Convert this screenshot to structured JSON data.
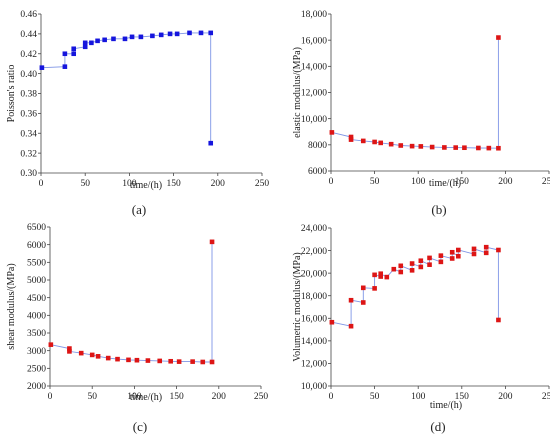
{
  "chart_data": [
    {
      "type": "scatter",
      "panel_label": "(a)",
      "xlabel": "time/(h)",
      "ylabel": "Poisson's ratio",
      "xlim": [
        0,
        250
      ],
      "ylim": [
        0.3,
        0.46
      ],
      "xticks": [
        "0",
        "50",
        "100",
        "150",
        "200",
        "250"
      ],
      "yticks": [
        "0.30",
        "0.32",
        "0.34",
        "0.36",
        "0.38",
        "0.40",
        "0.42",
        "0.44",
        "0.46"
      ],
      "marker_color": "#1515dd",
      "line_color": "#7f95e6",
      "connected": true,
      "points": [
        [
          1,
          0.406
        ],
        [
          27,
          0.407
        ],
        [
          27,
          0.42
        ],
        [
          37,
          0.42
        ],
        [
          37,
          0.425
        ],
        [
          50,
          0.427
        ],
        [
          50,
          0.431
        ],
        [
          57,
          0.431
        ],
        [
          64,
          0.433
        ],
        [
          72,
          0.434
        ],
        [
          82,
          0.435
        ],
        [
          95,
          0.435
        ],
        [
          103,
          0.437
        ],
        [
          113,
          0.437
        ],
        [
          126,
          0.438
        ],
        [
          136,
          0.439
        ],
        [
          146,
          0.44
        ],
        [
          154,
          0.44
        ],
        [
          168,
          0.441
        ],
        [
          181,
          0.441
        ],
        [
          192,
          0.441
        ],
        [
          192,
          0.33
        ]
      ]
    },
    {
      "type": "scatter",
      "panel_label": "(b)",
      "xlabel": "time/(h)",
      "ylabel": "elastic modulus/(MPa)",
      "xlim": [
        0,
        250
      ],
      "ylim": [
        6000,
        18000
      ],
      "xticks": [
        "0",
        "50",
        "100",
        "150",
        "200",
        "250"
      ],
      "yticks": [
        "6000",
        "8000",
        "10,000",
        "12,000",
        "14,000",
        "16,000",
        "18,000"
      ],
      "marker_color": "#dd1515",
      "line_color": "#7f95e6",
      "connected": true,
      "points": [
        [
          1,
          8950
        ],
        [
          23,
          8600
        ],
        [
          23,
          8400
        ],
        [
          37,
          8300
        ],
        [
          50,
          8220
        ],
        [
          57,
          8150
        ],
        [
          69,
          8050
        ],
        [
          80,
          7950
        ],
        [
          93,
          7900
        ],
        [
          103,
          7880
        ],
        [
          116,
          7830
        ],
        [
          130,
          7800
        ],
        [
          143,
          7790
        ],
        [
          153,
          7780
        ],
        [
          169,
          7760
        ],
        [
          181,
          7750
        ],
        [
          192,
          7740
        ],
        [
          192,
          16200
        ]
      ]
    },
    {
      "type": "scatter",
      "panel_label": "(c)",
      "xlabel": "time/(h)",
      "ylabel": "shear modulus/(MPa)",
      "xlim": [
        0,
        250
      ],
      "ylim": [
        2000,
        6500
      ],
      "xticks": [
        "0",
        "50",
        "100",
        "150",
        "200",
        "250"
      ],
      "yticks": [
        "2000",
        "2500",
        "3000",
        "3500",
        "4000",
        "4500",
        "5000",
        "5500",
        "6000",
        "6500"
      ],
      "marker_color": "#dd1515",
      "line_color": "#7f95e6",
      "connected": true,
      "points": [
        [
          1,
          3170
        ],
        [
          23,
          3060
        ],
        [
          23,
          2980
        ],
        [
          37,
          2930
        ],
        [
          50,
          2880
        ],
        [
          57,
          2840
        ],
        [
          69,
          2790
        ],
        [
          80,
          2760
        ],
        [
          93,
          2740
        ],
        [
          103,
          2730
        ],
        [
          116,
          2720
        ],
        [
          130,
          2710
        ],
        [
          143,
          2700
        ],
        [
          153,
          2690
        ],
        [
          169,
          2690
        ],
        [
          181,
          2680
        ],
        [
          192,
          2680
        ],
        [
          192,
          6080
        ]
      ]
    },
    {
      "type": "scatter",
      "panel_label": "(d)",
      "xlabel": "time/(h)",
      "ylabel": "Volumetric modulus/(MPa)",
      "xlim": [
        0,
        250
      ],
      "ylim": [
        10000,
        24000
      ],
      "xticks": [
        "0",
        "50",
        "100",
        "150",
        "200",
        "250"
      ],
      "yticks": [
        "10,000",
        "12,000",
        "14,000",
        "16,000",
        "18,000",
        "20,000",
        "22,000",
        "24,000"
      ],
      "marker_color": "#dd1515",
      "line_color": "#7f95e6",
      "connected": true,
      "points": [
        [
          1,
          15650
        ],
        [
          23,
          15300
        ],
        [
          23,
          17600
        ],
        [
          37,
          17400
        ],
        [
          37,
          18700
        ],
        [
          50,
          18650
        ],
        [
          50,
          19850
        ],
        [
          57,
          19700
        ],
        [
          57,
          19950
        ],
        [
          64,
          19650
        ],
        [
          72,
          20350
        ],
        [
          80,
          20100
        ],
        [
          80,
          20650
        ],
        [
          93,
          20250
        ],
        [
          93,
          20850
        ],
        [
          103,
          20550
        ],
        [
          103,
          21100
        ],
        [
          113,
          20750
        ],
        [
          113,
          21350
        ],
        [
          126,
          21000
        ],
        [
          126,
          21550
        ],
        [
          139,
          21300
        ],
        [
          139,
          21850
        ],
        [
          146,
          21500
        ],
        [
          146,
          22050
        ],
        [
          164,
          21700
        ],
        [
          164,
          22150
        ],
        [
          178,
          21800
        ],
        [
          178,
          22300
        ],
        [
          192,
          22050
        ],
        [
          192,
          15850
        ]
      ]
    }
  ]
}
